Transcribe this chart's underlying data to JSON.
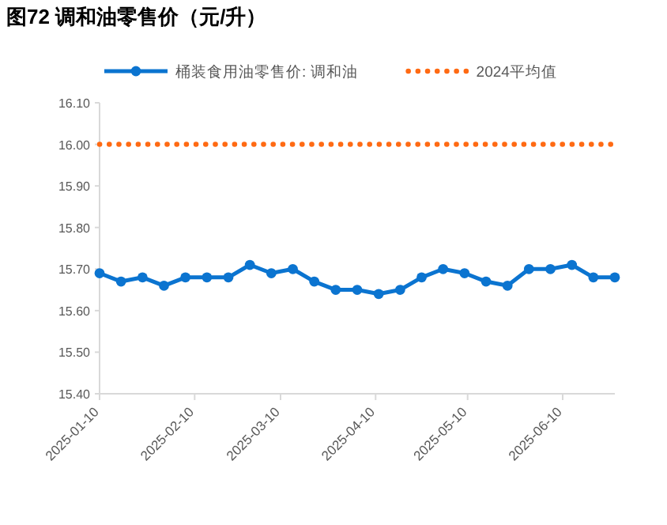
{
  "chart_data": {
    "type": "line",
    "title": "图72 调和油零售价（元/升）",
    "x": [
      "2025-01-10",
      "2025-01-17",
      "2025-01-24",
      "2025-01-31",
      "2025-02-07",
      "2025-02-14",
      "2025-02-21",
      "2025-02-28",
      "2025-03-07",
      "2025-03-14",
      "2025-03-21",
      "2025-03-28",
      "2025-04-04",
      "2025-04-11",
      "2025-04-18",
      "2025-04-25",
      "2025-05-02",
      "2025-05-09",
      "2025-05-16",
      "2025-05-23",
      "2025-05-30",
      "2025-06-06",
      "2025-06-13",
      "2025-06-20",
      "2025-06-27"
    ],
    "series": [
      {
        "name": "桶装食用油零售价: 调和油",
        "color": "#0b74d0",
        "values": [
          15.69,
          15.67,
          15.68,
          15.66,
          15.68,
          15.68,
          15.68,
          15.71,
          15.69,
          15.7,
          15.67,
          15.65,
          15.65,
          15.64,
          15.65,
          15.68,
          15.7,
          15.69,
          15.67,
          15.66,
          15.7,
          15.7,
          15.71,
          15.68,
          15.68
        ]
      }
    ],
    "ref_lines": [
      {
        "axis": "y",
        "value": 16.0,
        "label": "2024平均值",
        "color": "#ff6a13",
        "line_style": "dotted"
      }
    ],
    "xlim": [
      "2025-01-10",
      "2025-06-27"
    ],
    "xticks": [
      "2025-01-10",
      "2025-02-10",
      "2025-03-10",
      "2025-04-10",
      "2025-05-10",
      "2025-06-10"
    ],
    "ylim": [
      15.4,
      16.1
    ],
    "yticks": [
      {
        "value": 15.4,
        "label": "15.40"
      },
      {
        "value": 15.5,
        "label": "15.50"
      },
      {
        "value": 15.6,
        "label": "15.60"
      },
      {
        "value": 15.7,
        "label": "15.70"
      },
      {
        "value": 15.8,
        "label": "15.80"
      },
      {
        "value": 15.9,
        "label": "15.90"
      },
      {
        "value": 16.0,
        "label": "16.00"
      },
      {
        "value": 16.1,
        "label": "16.10"
      }
    ],
    "grid": false,
    "legend": "top",
    "marker": "circle",
    "line_style": "solid"
  }
}
